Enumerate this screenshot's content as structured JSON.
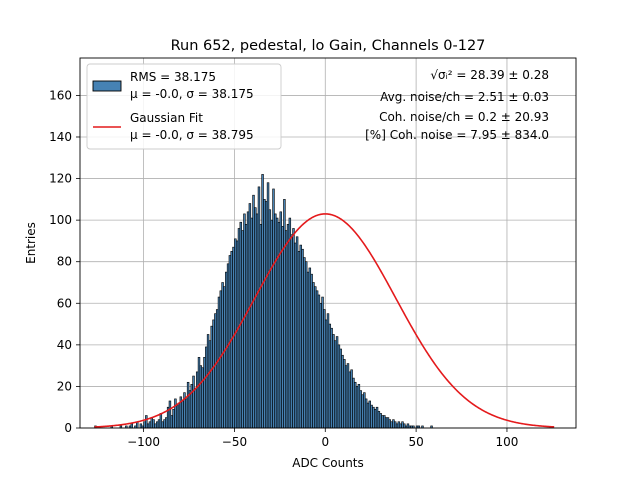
{
  "chart_data": {
    "type": "bar",
    "title": "Run 652, pedestal, lo Gain, Channels 0-127",
    "xlabel": "ADC Counts",
    "ylabel": "Entries",
    "xlim": [
      -135,
      138
    ],
    "ylim": [
      0,
      178
    ],
    "xticks": [
      -100,
      -50,
      0,
      50,
      100
    ],
    "yticks": [
      0,
      20,
      40,
      60,
      80,
      100,
      120,
      140,
      160
    ],
    "grid": true,
    "legend_position": "top-left",
    "series": [
      {
        "name": "RMS = 38.175",
        "name_line2": "μ = -0.0, σ = 38.175",
        "kind": "histogram",
        "color": "#4682b4",
        "edge_color": "#000000",
        "bin_start": -127,
        "bin_width": 1,
        "values": [
          1,
          0,
          0,
          0,
          0,
          0,
          0,
          0,
          0,
          1,
          0,
          0,
          0,
          0,
          1,
          0,
          0,
          1,
          0,
          1,
          2,
          0,
          1,
          3,
          0,
          2,
          1,
          3,
          6,
          2,
          3,
          5,
          4,
          2,
          3,
          4,
          7,
          3,
          4,
          5,
          10,
          13,
          6,
          9,
          14,
          11,
          12,
          15,
          13,
          17,
          14,
          22,
          18,
          21,
          25,
          19,
          27,
          34,
          30,
          29,
          34,
          39,
          45,
          42,
          49,
          52,
          55,
          57,
          63,
          66,
          70,
          68,
          75,
          79,
          83,
          85,
          87,
          91,
          90,
          96,
          99,
          95,
          103,
          98,
          104,
          108,
          101,
          112,
          106,
          103,
          116,
          98,
          122,
          110,
          109,
          118,
          105,
          100,
          115,
          103,
          101,
          99,
          104,
          97,
          110,
          95,
          98,
          101,
          93,
          96,
          89,
          92,
          85,
          88,
          86,
          82,
          80,
          75,
          77,
          74,
          70,
          68,
          66,
          64,
          60,
          63,
          57,
          52,
          55,
          50,
          48,
          45,
          42,
          44,
          40,
          38,
          35,
          33,
          30,
          31,
          27,
          28,
          24,
          22,
          20,
          21,
          18,
          16,
          17,
          14,
          12,
          13,
          11,
          10,
          9,
          10,
          8,
          7,
          6,
          6,
          5,
          5,
          4,
          3,
          4,
          3,
          2,
          3,
          2,
          3,
          2,
          1,
          2,
          1,
          1,
          1,
          0,
          1,
          1,
          0,
          1,
          0,
          0,
          0,
          0,
          1,
          0,
          0,
          0,
          0,
          0,
          0,
          0,
          0,
          0,
          0,
          0,
          0,
          0,
          0,
          0,
          0,
          0,
          0,
          0,
          0,
          0,
          0,
          0,
          0,
          0,
          0,
          0,
          0,
          0,
          0,
          0,
          0,
          0,
          0,
          0,
          0,
          0,
          0,
          0,
          0,
          0,
          0,
          0,
          0,
          0,
          0,
          0,
          0,
          0,
          0,
          0,
          0,
          0,
          0,
          0,
          0,
          0,
          0,
          0,
          0,
          0,
          0,
          0,
          0,
          0,
          0,
          0,
          0,
          0
        ]
      },
      {
        "name": "Gaussian Fit",
        "name_line2": "μ = -0.0, σ = 38.795",
        "kind": "line",
        "color": "#e41a1c",
        "mu": 0.0,
        "sigma": 38.795,
        "amplitude": 103,
        "x_range": [
          -127,
          126
        ]
      }
    ],
    "annotations": [
      {
        "text": "√σᵢ² = 28.39 ± 0.28"
      },
      {
        "text": "Avg. noise/ch = 2.51 ± 0.03"
      },
      {
        "text": "Coh. noise/ch = 0.2 ± 20.93"
      },
      {
        "text": "[%] Coh. noise = 7.95 ± 834.0"
      }
    ]
  }
}
